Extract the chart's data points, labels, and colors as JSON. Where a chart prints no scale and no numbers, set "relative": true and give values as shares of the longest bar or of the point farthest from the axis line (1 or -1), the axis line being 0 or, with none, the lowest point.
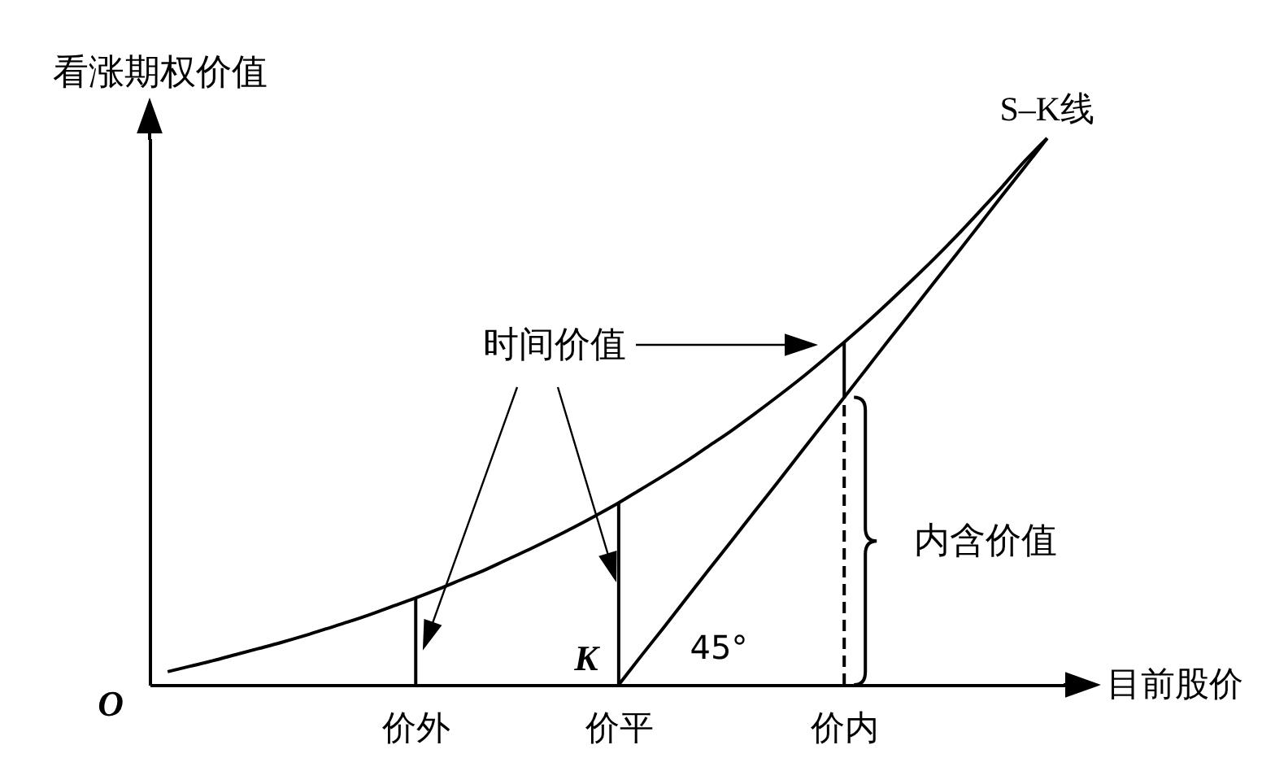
{
  "chart_data": {
    "type": "line",
    "xlabel": "目前股价",
    "ylabel": "看涨期权价值",
    "relative": true,
    "tick_labels": "x",
    "categories": [
      null,
      null,
      null,
      null,
      null,
      null,
      null,
      null,
      null,
      null,
      null,
      "价外",
      null,
      null,
      null,
      null,
      null,
      null,
      null,
      null,
      "价平",
      null,
      null,
      null,
      null,
      null,
      null,
      null,
      null,
      null,
      "价内",
      null,
      null,
      null,
      null,
      null,
      null,
      null,
      null,
      null
    ],
    "series": [
      {
        "color": "#000000",
        "values": [
          0.024,
          0.034,
          0.044,
          0.055,
          0.066,
          0.077,
          0.089,
          0.102,
          0.115,
          0.129,
          0.144,
          0.159,
          0.175,
          0.192,
          0.209,
          0.228,
          0.247,
          0.267,
          0.288,
          0.31,
          0.333,
          0.358,
          0.383,
          0.409,
          0.437,
          0.465,
          0.495,
          0.526,
          0.558,
          0.592,
          0.627,
          0.663,
          0.701,
          0.74,
          0.78,
          0.822,
          0.866,
          0.911,
          0.958,
          1
        ]
      },
      {
        "name": "S–K线",
        "color": "#000000",
        "values": [
          null,
          null,
          null,
          null,
          null,
          null,
          null,
          null,
          null,
          null,
          null,
          null,
          null,
          null,
          null,
          null,
          null,
          null,
          null,
          null,
          0,
          0.053,
          0.105,
          0.158,
          0.211,
          0.263,
          0.316,
          0.368,
          0.421,
          0.474,
          0.526,
          0.579,
          0.632,
          0.684,
          0.737,
          0.789,
          0.842,
          0.895,
          0.947,
          1
        ]
      },
      {
        "color": "#000000",
        "x": [
          "价外",
          "价外"
        ],
        "values": [
          0,
          0.159
        ]
      },
      {
        "color": "#000000",
        "x": [
          "价平",
          "价平"
        ],
        "values": [
          0,
          0.333
        ]
      },
      {
        "color": "#000000",
        "x": [
          "价内",
          "价内"
        ],
        "values": [
          0.526,
          0.627
        ]
      },
      {
        "color": "#000000",
        "x": [
          "价内",
          "价内"
        ],
        "values": [
          0,
          0.526
        ],
        "line_style": "dashed"
      }
    ],
    "annotations": [
      "O",
      {
        "text": "K",
        "x": "价平",
        "y": 0
      },
      "45°",
      "时间价值",
      "内含价值"
    ]
  }
}
